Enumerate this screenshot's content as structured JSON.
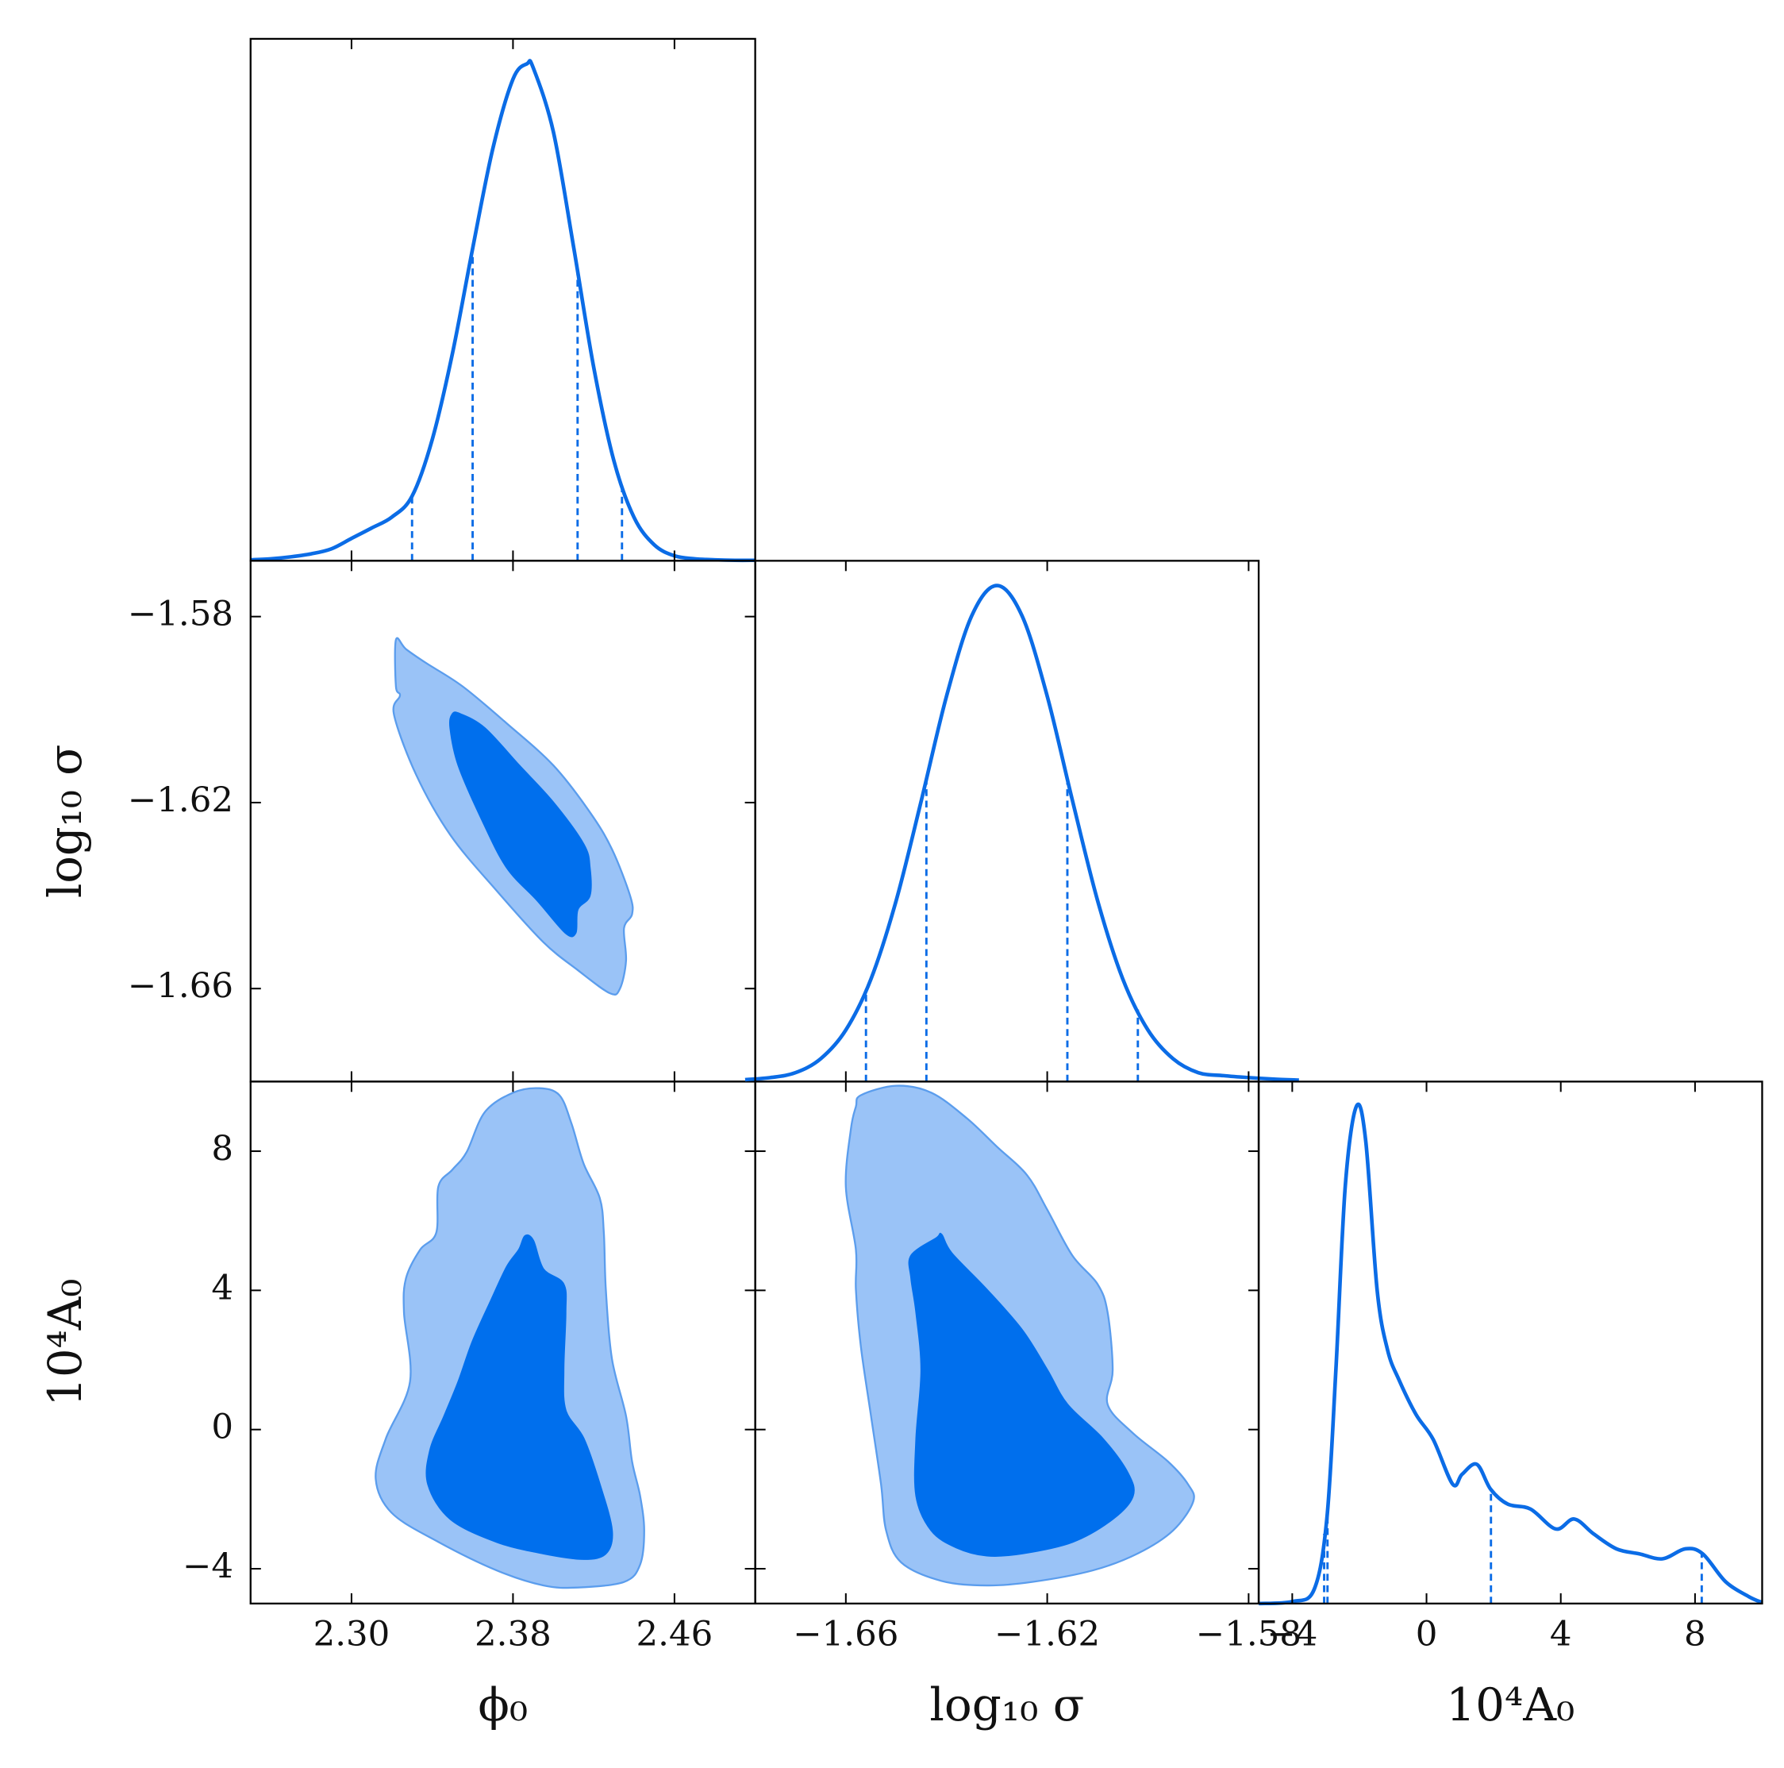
{
  "chart_data": {
    "type": "corner",
    "density_lim": [
      0,
      1.05
    ],
    "line_color": "#0b6ce6",
    "parameters": [
      {
        "label": "ϕ₀",
        "lim": [
          2.25,
          2.5
        ],
        "ticks": [
          {
            "value": 2.3,
            "label": "2.30"
          },
          2.38,
          2.46
        ]
      },
      {
        "label": "log₁₀ σ",
        "lim": [
          -1.678,
          -1.578
        ],
        "ylim": [
          -1.68,
          -1.568
        ],
        "ticks": [
          {
            "value": -1.66,
            "label": "−1.66"
          },
          {
            "value": -1.62,
            "label": "−1.62"
          },
          {
            "value": -1.58,
            "label": "−1.58"
          }
        ]
      },
      {
        "label": "10⁴A₀",
        "lim": [
          -5,
          10
        ],
        "ticks": [
          {
            "value": -4,
            "label": "−4"
          },
          0,
          4,
          8
        ]
      }
    ],
    "marginals": [
      {
        "x": [
          2.25,
          2.26,
          2.27,
          2.28,
          2.29,
          2.3,
          2.31,
          2.32,
          2.33,
          2.34,
          2.35,
          2.36,
          2.37,
          2.38,
          2.387,
          2.39,
          2.4,
          2.41,
          2.42,
          2.43,
          2.44,
          2.45,
          2.46,
          2.47,
          2.48,
          2.49,
          2.5
        ],
        "values": [
          0.002,
          0.004,
          0.008,
          0.014,
          0.024,
          0.045,
          0.066,
          0.088,
          0.13,
          0.244,
          0.417,
          0.628,
          0.829,
          0.969,
          1.0,
          0.992,
          0.863,
          0.632,
          0.389,
          0.201,
          0.087,
          0.032,
          0.01,
          0.004,
          0.002,
          0.001,
          0.001
        ],
        "quantiles": [
          2.33,
          2.36,
          2.412,
          2.434
        ]
      },
      {
        "x": [
          -1.68,
          -1.675,
          -1.67,
          -1.665,
          -1.66,
          -1.655,
          -1.65,
          -1.645,
          -1.64,
          -1.635,
          -1.63,
          -1.625,
          -1.62,
          -1.615,
          -1.61,
          -1.605,
          -1.6,
          -1.595,
          -1.59,
          -1.585,
          -1.58,
          -1.575,
          -1.57
        ],
        "values": [
          0.004,
          0.008,
          0.018,
          0.046,
          0.104,
          0.207,
          0.365,
          0.567,
          0.777,
          0.939,
          1.0,
          0.939,
          0.777,
          0.567,
          0.365,
          0.207,
          0.104,
          0.046,
          0.018,
          0.012,
          0.008,
          0.005,
          0.003
        ],
        "quantiles": [
          -1.656,
          -1.644,
          -1.616,
          -1.602
        ]
      },
      {
        "x": [
          -5,
          -4.0,
          -3.35,
          -2.97,
          -2.7,
          -2.42,
          -2.09,
          -1.81,
          -1.47,
          -1.16,
          -0.82,
          -0.31,
          0.2,
          0.78,
          1.06,
          1.5,
          1.91,
          2.42,
          3.1,
          3.85,
          4.4,
          4.98,
          5.66,
          6.34,
          7.03,
          7.71,
          8.23,
          8.91,
          9.6,
          10.0
        ],
        "values": [
          0,
          0.004,
          0.028,
          0.17,
          0.47,
          0.84,
          1.0,
          0.93,
          0.63,
          0.51,
          0.45,
          0.38,
          0.33,
          0.24,
          0.26,
          0.28,
          0.23,
          0.2,
          0.19,
          0.15,
          0.17,
          0.14,
          0.11,
          0.1,
          0.09,
          0.11,
          0.1,
          0.044,
          0.014,
          0.002
        ],
        "quantiles": [
          -3.05,
          -2.95,
          1.92,
          8.2
        ]
      }
    ],
    "contours": [
      {
        "levels": [
          {
            "color": "#9ac3f7",
            "edgecolor": "#5b9ded",
            "x": [
              2.322,
              2.327,
              2.337,
              2.355,
              2.377,
              2.4,
              2.418,
              2.429,
              2.438,
              2.439,
              2.435,
              2.436,
              2.433,
              2.428,
              2.412,
              2.395,
              2.372,
              2.349,
              2.332,
              2.321,
              2.324,
              2.322
            ],
            "y": [
              -1.585,
              -1.587,
              -1.59,
              -1.595,
              -1.603,
              -1.612,
              -1.622,
              -1.63,
              -1.64,
              -1.644,
              -1.647,
              -1.654,
              -1.66,
              -1.661,
              -1.656,
              -1.65,
              -1.639,
              -1.627,
              -1.614,
              -1.601,
              -1.597,
              -1.595
            ]
          },
          {
            "color": "#006fed",
            "edgecolor": "#006fed",
            "x": [
              2.35,
              2.354,
              2.366,
              2.383,
              2.4,
              2.415,
              2.418,
              2.418,
              2.412,
              2.411,
              2.406,
              2.392,
              2.377,
              2.365,
              2.353,
              2.349
            ],
            "y": [
              -1.601,
              -1.601,
              -1.604,
              -1.612,
              -1.62,
              -1.629,
              -1.634,
              -1.64,
              -1.643,
              -1.648,
              -1.648,
              -1.641,
              -1.634,
              -1.624,
              -1.612,
              -1.604
            ]
          }
        ]
      },
      {
        "levels": [
          {
            "color": "#9ac3f7",
            "edgecolor": "#5b9ded",
            "x": [
              2.366,
              2.38,
              2.393,
              2.403,
              2.409,
              2.415,
              2.423,
              2.425,
              2.426,
              2.429,
              2.436,
              2.439,
              2.443,
              2.445,
              2.443,
              2.435,
              2.412,
              2.395,
              2.372,
              2.343,
              2.32,
              2.312,
              2.317,
              2.329,
              2.326,
              2.327,
              2.334,
              2.342,
              2.343,
              2.35,
              2.357
            ],
            "y": [
              9.12,
              9.68,
              9.81,
              9.61,
              8.79,
              7.64,
              6.65,
              5.66,
              4.02,
              2.04,
              0.39,
              -0.92,
              -1.91,
              -2.9,
              -3.88,
              -4.38,
              -4.54,
              -4.48,
              -4.05,
              -3.23,
              -2.4,
              -1.42,
              -0.26,
              1.38,
              3.36,
              4.35,
              5.17,
              5.66,
              6.98,
              7.47,
              7.97
            ]
          },
          {
            "color": "#006fed",
            "edgecolor": "#006fed",
            "x": [
              2.386,
              2.39,
              2.395,
              2.405,
              2.406,
              2.405,
              2.406,
              2.415,
              2.423,
              2.429,
              2.426,
              2.415,
              2.395,
              2.372,
              2.349,
              2.338,
              2.339,
              2.346,
              2.353,
              2.36,
              2.369,
              2.377,
              2.383
            ],
            "y": [
              5.56,
              5.43,
              4.61,
              4.18,
              3.36,
              1.71,
              0.56,
              -0.26,
              -1.58,
              -2.9,
              -3.56,
              -3.72,
              -3.56,
              -3.23,
              -2.57,
              -1.58,
              -0.59,
              0.39,
              1.38,
              2.53,
              3.69,
              4.68,
              5.17
            ]
          }
        ]
      },
      {
        "levels": [
          {
            "color": "#9ac3f7",
            "edgecolor": "#5b9ded",
            "x": [
              -1.657,
              -1.65,
              -1.643,
              -1.636,
              -1.63,
              -1.624,
              -1.62,
              -1.615,
              -1.61,
              -1.608,
              -1.607,
              -1.608,
              -1.603,
              -1.596,
              -1.592,
              -1.591,
              -1.595,
              -1.602,
              -1.611,
              -1.623,
              -1.632,
              -1.641,
              -1.649,
              -1.652,
              -1.653,
              -1.655,
              -1.657,
              -1.658,
              -1.658,
              -1.66,
              -1.659,
              -1.658
            ],
            "y": [
              9.61,
              9.88,
              9.68,
              8.95,
              8.13,
              7.31,
              6.32,
              5.0,
              4.18,
              3.36,
              1.71,
              0.72,
              -0.1,
              -0.92,
              -1.58,
              -2.07,
              -2.9,
              -3.56,
              -4.05,
              -4.38,
              -4.48,
              -4.35,
              -3.82,
              -2.9,
              -1.58,
              0.39,
              2.37,
              4.02,
              5.17,
              6.98,
              8.63,
              9.28
            ]
          },
          {
            "color": "#006fed",
            "edgecolor": "#006fed",
            "x": [
              -1.647,
              -1.642,
              -1.641,
              -1.639,
              -1.632,
              -1.625,
              -1.62,
              -1.616,
              -1.609,
              -1.604,
              -1.603,
              -1.607,
              -1.615,
              -1.625,
              -1.632,
              -1.638,
              -1.643,
              -1.646,
              -1.646,
              -1.645,
              -1.646,
              -1.647
            ],
            "y": [
              5.0,
              5.5,
              5.6,
              5.07,
              4.02,
              2.86,
              1.71,
              0.72,
              -0.26,
              -1.25,
              -1.91,
              -2.57,
              -3.23,
              -3.56,
              -3.62,
              -3.39,
              -2.9,
              -1.91,
              -0.26,
              1.71,
              3.36,
              4.35
            ]
          }
        ]
      }
    ]
  }
}
